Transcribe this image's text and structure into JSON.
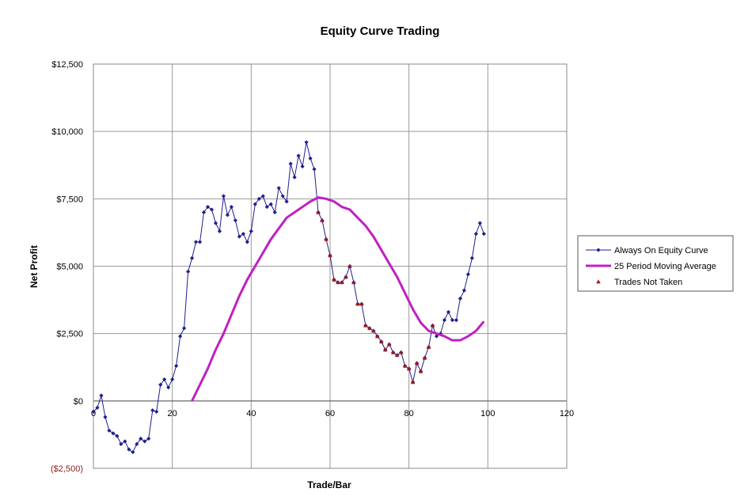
{
  "chart_data": {
    "type": "line",
    "title": "Equity Curve Trading",
    "xlabel": "Trade/Bar",
    "ylabel": "Net Profit",
    "xlim": [
      0,
      120
    ],
    "ylim": [
      -2500,
      12500
    ],
    "x_ticks": [
      0,
      20,
      40,
      60,
      80,
      100,
      120
    ],
    "x_tick_labels": [
      "0",
      "20",
      "40",
      "60",
      "80",
      "100",
      "120"
    ],
    "y_ticks": [
      -2500,
      0,
      2500,
      5000,
      7500,
      10000,
      12500
    ],
    "y_tick_labels": [
      "($2,500)",
      "$0",
      "$2,500",
      "$5,000",
      "$7,500",
      "$10,000",
      "$12,500"
    ],
    "grid": true,
    "legend_position": "right",
    "series": [
      {
        "name": "Always On Equity Curve",
        "style": "line-markers-diamond",
        "color": "#1f1f8f",
        "x": [
          0,
          1,
          2,
          3,
          4,
          5,
          6,
          7,
          8,
          9,
          10,
          11,
          12,
          13,
          14,
          15,
          16,
          17,
          18,
          19,
          20,
          21,
          22,
          23,
          24,
          25,
          26,
          27,
          28,
          29,
          30,
          31,
          32,
          33,
          34,
          35,
          36,
          37,
          38,
          39,
          40,
          41,
          42,
          43,
          44,
          45,
          46,
          47,
          48,
          49,
          50,
          51,
          52,
          53,
          54,
          55,
          56,
          57,
          58,
          59,
          60,
          61,
          62,
          63,
          64,
          65,
          66,
          67,
          68,
          69,
          70,
          71,
          72,
          73,
          74,
          75,
          76,
          77,
          78,
          79,
          80,
          81,
          82,
          83,
          84,
          85,
          86,
          87,
          88,
          89,
          90,
          91,
          92,
          93,
          94,
          95,
          96,
          97,
          98,
          99
        ],
        "values": [
          -400,
          -250,
          200,
          -600,
          -1100,
          -1200,
          -1300,
          -1600,
          -1500,
          -1800,
          -1900,
          -1600,
          -1400,
          -1500,
          -1400,
          -350,
          -400,
          600,
          800,
          500,
          800,
          1300,
          2400,
          2700,
          4800,
          5300,
          5900,
          5900,
          7000,
          7200,
          7100,
          6600,
          6300,
          7600,
          6900,
          7200,
          6700,
          6100,
          6200,
          5900,
          6300,
          7300,
          7500,
          7600,
          7200,
          7300,
          7000,
          7900,
          7600,
          7400,
          8800,
          8300,
          9100,
          8700,
          9600,
          9000,
          8600,
          7000,
          6700,
          6000,
          5400,
          4500,
          4400,
          4400,
          4600,
          5000,
          4400,
          3600,
          3600,
          2800,
          2700,
          2600,
          2400,
          2200,
          1900,
          2100,
          1800,
          1700,
          1800,
          1300,
          1200,
          700,
          1400,
          1100,
          1600,
          2000,
          2800,
          2400,
          2500,
          3000,
          3300,
          3000,
          3000,
          3800,
          4100,
          4700,
          5300,
          6200,
          6600,
          6200
        ]
      },
      {
        "name": "25 Period Moving Average",
        "style": "line",
        "color": "#c020c0",
        "x": [
          25,
          27,
          29,
          31,
          33,
          35,
          37,
          39,
          41,
          43,
          45,
          47,
          49,
          51,
          53,
          55,
          57,
          59,
          61,
          63,
          65,
          67,
          69,
          71,
          73,
          75,
          77,
          79,
          81,
          83,
          85,
          87,
          89,
          91,
          93,
          95,
          97,
          99
        ],
        "values": [
          0,
          600,
          1200,
          1900,
          2500,
          3200,
          3900,
          4500,
          5000,
          5500,
          6000,
          6400,
          6800,
          7000,
          7200,
          7400,
          7550,
          7500,
          7400,
          7200,
          7100,
          6800,
          6500,
          6100,
          5600,
          5100,
          4600,
          4000,
          3400,
          2900,
          2600,
          2500,
          2400,
          2250,
          2250,
          2400,
          2600,
          2950
        ]
      },
      {
        "name": "Trades Not Taken",
        "style": "markers-triangle",
        "color": "#a01818",
        "x": [
          57,
          58,
          59,
          60,
          61,
          62,
          63,
          64,
          65,
          66,
          67,
          68,
          69,
          70,
          71,
          72,
          73,
          74,
          75,
          76,
          77,
          78,
          79,
          80,
          81,
          82,
          83,
          84,
          85,
          86
        ],
        "values": [
          7000,
          6700,
          6000,
          5400,
          4500,
          4400,
          4400,
          4600,
          5000,
          4400,
          3600,
          3600,
          2800,
          2700,
          2600,
          2400,
          2200,
          1900,
          2100,
          1800,
          1700,
          1800,
          1300,
          1200,
          700,
          1400,
          1100,
          1600,
          2000,
          2800
        ]
      }
    ]
  }
}
